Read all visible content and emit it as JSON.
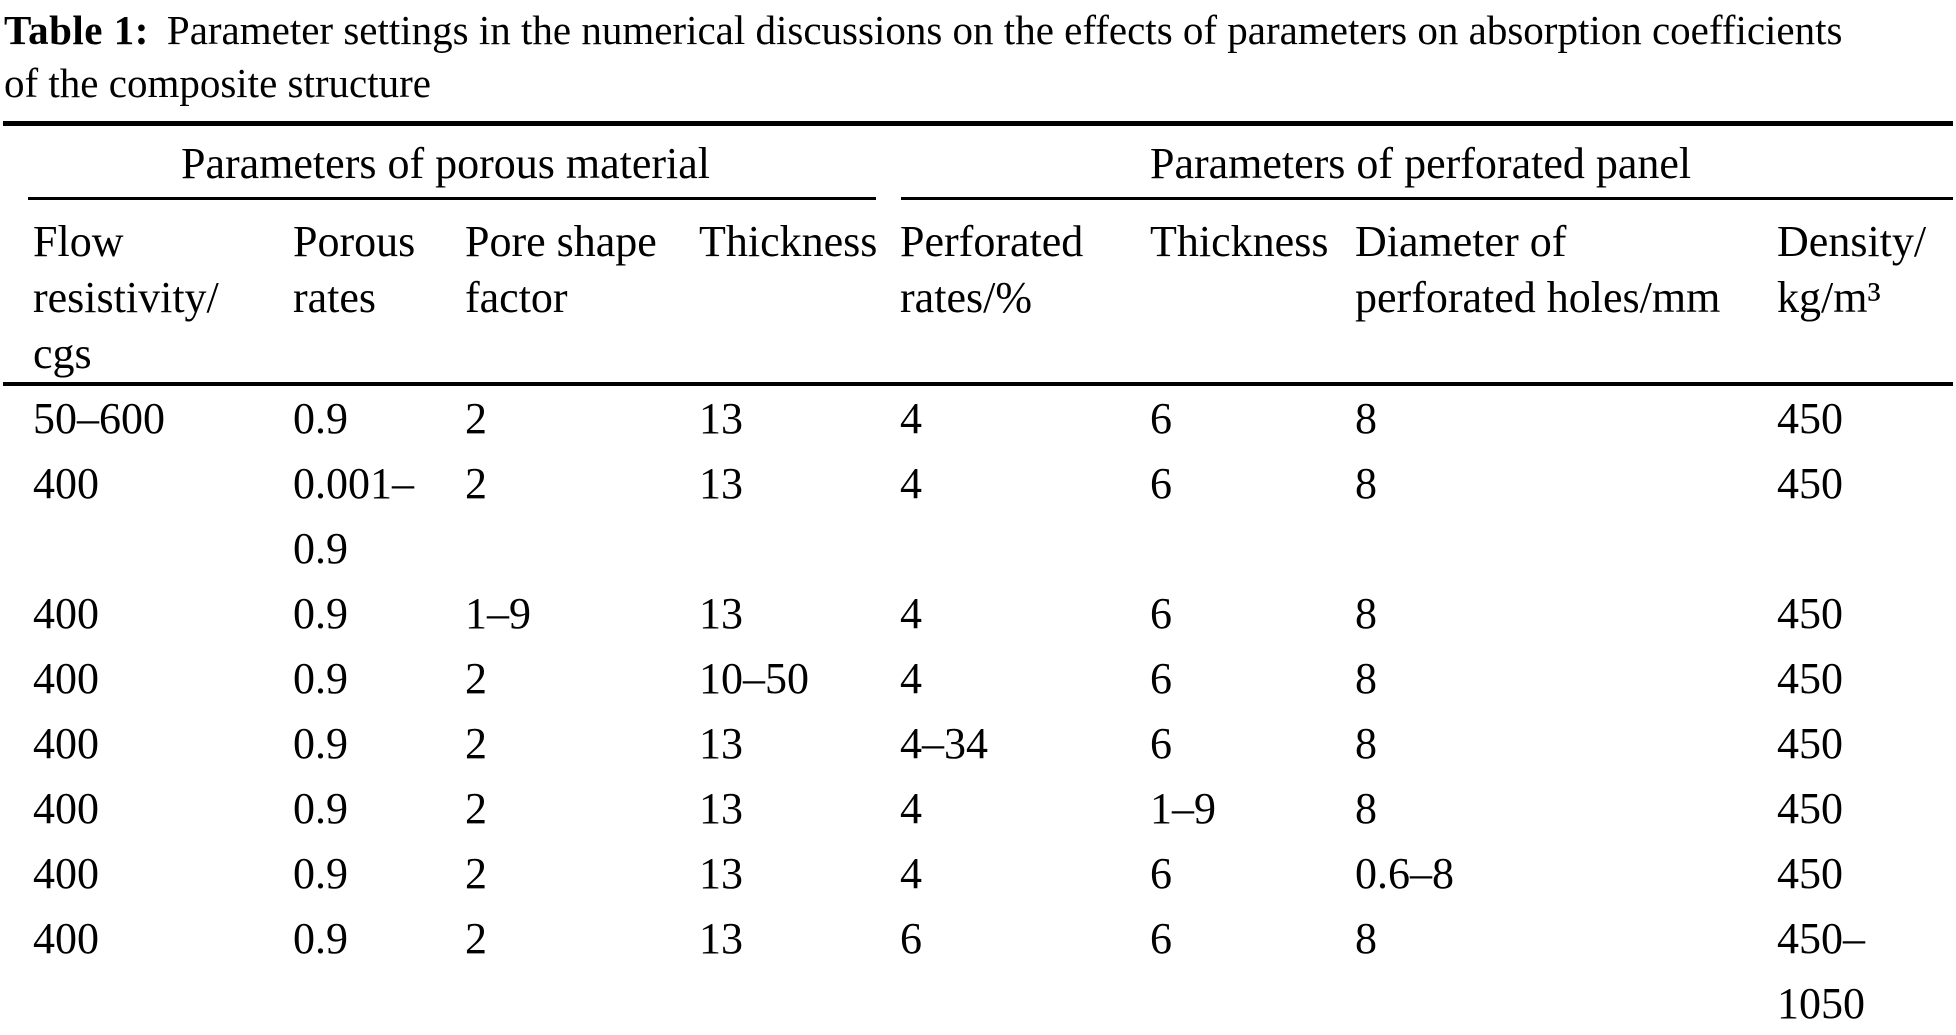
{
  "colors": {
    "background": "#ffffff",
    "text": "#000000",
    "rule": "#000000"
  },
  "caption": {
    "label": "Table 1:",
    "line1": "Parameter settings in the numerical discussions on the effects of parameters on absorption coefficients",
    "line2": "of the composite structure"
  },
  "table": {
    "groups": [
      {
        "label": "Parameters of porous material"
      },
      {
        "label": "Parameters of perforated panel"
      }
    ],
    "columns": [
      "Flow resistivity/ cgs",
      "Porous rates",
      "Pore shape factor",
      "Thickness",
      "Perforated rates/%",
      "Thickness",
      "Diameter of perforated holes/mm",
      "Density/ kg/m³"
    ],
    "rows": [
      [
        "50–600",
        "0.9",
        "2",
        "13",
        "4",
        "6",
        "8",
        "450"
      ],
      [
        "400",
        "0.001–0.9",
        "2",
        "13",
        "4",
        "6",
        "8",
        "450"
      ],
      [
        "400",
        "0.9",
        "1–9",
        "13",
        "4",
        "6",
        "8",
        "450"
      ],
      [
        "400",
        "0.9",
        "2",
        "10–50",
        "4",
        "6",
        "8",
        "450"
      ],
      [
        "400",
        "0.9",
        "2",
        "13",
        "4–34",
        "6",
        "8",
        "450"
      ],
      [
        "400",
        "0.9",
        "2",
        "13",
        "4",
        "1–9",
        "8",
        "450"
      ],
      [
        "400",
        "0.9",
        "2",
        "13",
        "4",
        "6",
        "0.6–8",
        "450"
      ],
      [
        "400",
        "0.9",
        "2",
        "13",
        "6",
        "6",
        "8",
        "450–1050"
      ]
    ]
  }
}
